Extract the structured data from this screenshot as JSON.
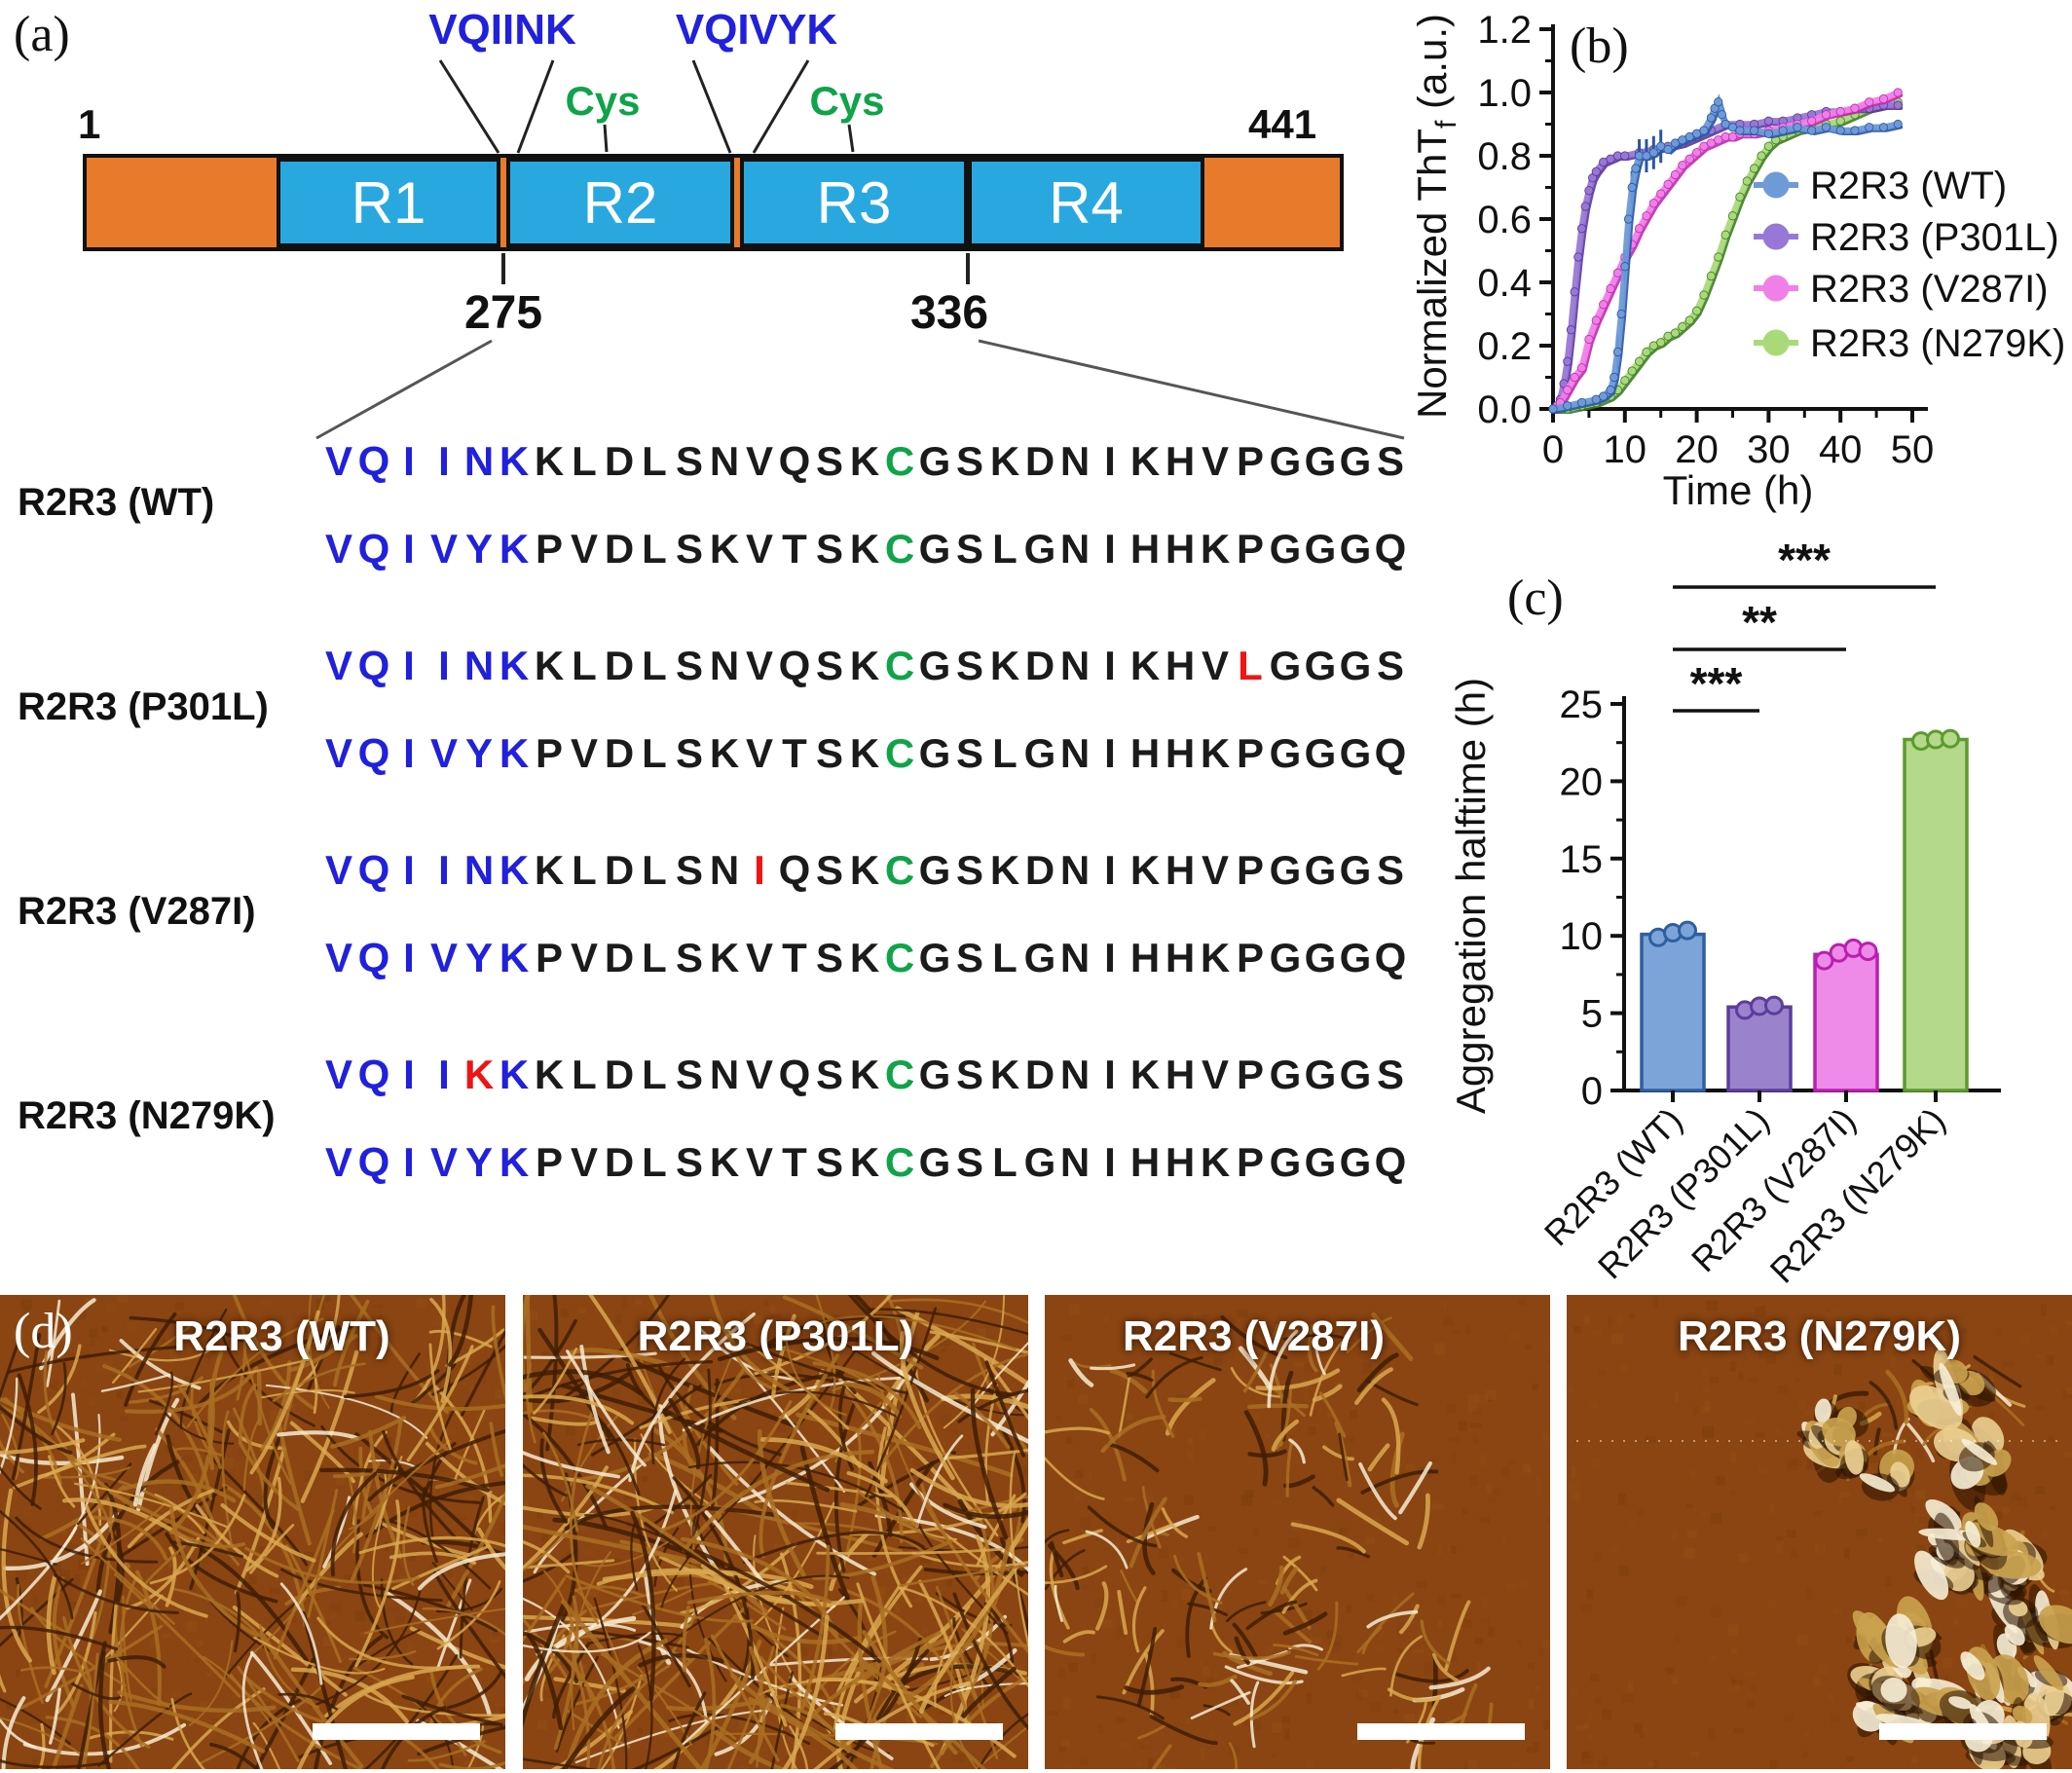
{
  "figure": {
    "panel_labels": {
      "a": "(a)",
      "b": "(b)",
      "c": "(c)",
      "d": "(d)"
    }
  },
  "domain_diagram": {
    "start_residue": "1",
    "end_residue": "441",
    "segments": [
      "",
      "R1",
      "R2",
      "R3",
      "R4",
      ""
    ],
    "motifs": {
      "vqiink": "VQIINK",
      "vqivyk": "VQIVYK"
    },
    "cys": [
      "Cys",
      "Cys"
    ],
    "boundaries": {
      "r1_r2": "275",
      "r3_r4": "336"
    },
    "colors": {
      "flank": "#e87a2c",
      "repeat": "#29a8e0",
      "motif_text": "#2020dd",
      "cys_text": "#10a34a",
      "mutation_text": "#ee1414"
    }
  },
  "sequences": {
    "rows": [
      {
        "name": "R2R3 (WT)",
        "line1": [
          {
            "t": "VQIINK",
            "c": "motif"
          },
          {
            "t": "KLDLSNVQSK",
            "c": "plain"
          },
          {
            "t": "C",
            "c": "cys"
          },
          {
            "t": "GSKDNIKHVPGGGS",
            "c": "plain"
          }
        ],
        "line2": [
          {
            "t": "VQIVYK",
            "c": "motif"
          },
          {
            "t": "PVDLSKVTSK",
            "c": "plain"
          },
          {
            "t": "C",
            "c": "cys"
          },
          {
            "t": "GSLGNIHHKPGGGQ",
            "c": "plain"
          }
        ]
      },
      {
        "name": "R2R3 (P301L)",
        "line1": [
          {
            "t": "VQIINK",
            "c": "motif"
          },
          {
            "t": "KLDLSNVQSK",
            "c": "plain"
          },
          {
            "t": "C",
            "c": "cys"
          },
          {
            "t": "GSKDNIKHV",
            "c": "plain"
          },
          {
            "t": "L",
            "c": "mut"
          },
          {
            "t": "GGGS",
            "c": "plain"
          }
        ],
        "line2": [
          {
            "t": "VQIVYK",
            "c": "motif"
          },
          {
            "t": "PVDLSKVTSK",
            "c": "plain"
          },
          {
            "t": "C",
            "c": "cys"
          },
          {
            "t": "GSLGNIHHKPGGGQ",
            "c": "plain"
          }
        ]
      },
      {
        "name": "R2R3 (V287I)",
        "line1": [
          {
            "t": "VQIINK",
            "c": "motif"
          },
          {
            "t": "KLDLSN",
            "c": "plain"
          },
          {
            "t": "I",
            "c": "mut"
          },
          {
            "t": "QSK",
            "c": "plain"
          },
          {
            "t": "C",
            "c": "cys"
          },
          {
            "t": "GSKDNIKHVPGGGS",
            "c": "plain"
          }
        ],
        "line2": [
          {
            "t": "VQIVYK",
            "c": "motif"
          },
          {
            "t": "PVDLSKVTSK",
            "c": "plain"
          },
          {
            "t": "C",
            "c": "cys"
          },
          {
            "t": "GSLGNIHHKPGGGQ",
            "c": "plain"
          }
        ]
      },
      {
        "name": "R2R3 (N279K)",
        "line1": [
          {
            "t": "VQII",
            "c": "motif"
          },
          {
            "t": "K",
            "c": "mut"
          },
          {
            "t": "K",
            "c": "motif"
          },
          {
            "t": "KLDLSNVQSK",
            "c": "plain"
          },
          {
            "t": "C",
            "c": "cys"
          },
          {
            "t": "GSKDNIKHVPGGGS",
            "c": "plain"
          }
        ],
        "line2": [
          {
            "t": "VQIVYK",
            "c": "motif"
          },
          {
            "t": "PVDLSKVTSK",
            "c": "plain"
          },
          {
            "t": "C",
            "c": "cys"
          },
          {
            "t": "GSLGNIHHKPGGGQ",
            "c": "plain"
          }
        ]
      }
    ]
  },
  "chart_data": [
    {
      "panel": "b",
      "type": "line",
      "title": "",
      "xlabel": "Time (h)",
      "ylabel_main": "Normalized ThT",
      "ylabel_sub": "f",
      "ylabel_unit": " (a.u.)",
      "xlim": [
        0,
        52
      ],
      "ylim": [
        0,
        1.2
      ],
      "xticks": [
        0,
        10,
        20,
        30,
        40,
        50
      ],
      "yticks": [
        0.0,
        0.2,
        0.4,
        0.6,
        0.8,
        1.0,
        1.2
      ],
      "legend_position": "inside-right",
      "series": [
        {
          "name": "R2R3 (WT)",
          "color": "#6e9ad8",
          "dark": "#2a55a0",
          "error_bars_x": [
            9,
            10,
            11,
            12,
            13,
            14,
            15
          ],
          "x": [
            0,
            2,
            4,
            6,
            7,
            8,
            8.5,
            9,
            9.5,
            10,
            10.5,
            11,
            11.5,
            12,
            13,
            14,
            15,
            16,
            17,
            18,
            19,
            20,
            21,
            22,
            22.5,
            23,
            23.5,
            24,
            25,
            26,
            28,
            30,
            32,
            34,
            36,
            38,
            40,
            42,
            44,
            46,
            48
          ],
          "y": [
            0,
            0.01,
            0.02,
            0.03,
            0.04,
            0.06,
            0.1,
            0.18,
            0.3,
            0.45,
            0.6,
            0.7,
            0.76,
            0.8,
            0.8,
            0.81,
            0.83,
            0.82,
            0.84,
            0.85,
            0.86,
            0.87,
            0.88,
            0.92,
            0.95,
            0.97,
            0.93,
            0.9,
            0.89,
            0.88,
            0.88,
            0.87,
            0.88,
            0.89,
            0.88,
            0.89,
            0.88,
            0.88,
            0.89,
            0.89,
            0.9
          ]
        },
        {
          "name": "R2R3 (P301L)",
          "color": "#9878d6",
          "dark": "#5a3898",
          "x": [
            0,
            0.5,
            1,
            1.5,
            2,
            2.5,
            3,
            3.5,
            4,
            4.5,
            5,
            5.5,
            6,
            7,
            8,
            9,
            10,
            12,
            14,
            16,
            18,
            20,
            22,
            24,
            26,
            28,
            30,
            32,
            34,
            36,
            38,
            40,
            42,
            44,
            46,
            48
          ],
          "y": [
            0,
            0.01,
            0.03,
            0.08,
            0.15,
            0.25,
            0.37,
            0.48,
            0.57,
            0.64,
            0.69,
            0.73,
            0.75,
            0.78,
            0.79,
            0.8,
            0.8,
            0.81,
            0.82,
            0.83,
            0.84,
            0.86,
            0.88,
            0.9,
            0.9,
            0.9,
            0.91,
            0.91,
            0.92,
            0.93,
            0.94,
            0.94,
            0.95,
            0.95,
            0.96,
            0.96
          ]
        },
        {
          "name": "R2R3 (V287I)",
          "color": "#f080e8",
          "dark": "#c02cb0",
          "x": [
            0,
            1,
            2,
            3,
            4,
            5,
            6,
            7,
            8,
            9,
            10,
            11,
            12,
            13,
            14,
            15,
            16,
            17,
            18,
            19,
            20,
            21,
            22,
            23,
            24,
            25,
            26,
            28,
            30,
            32,
            34,
            36,
            38,
            40,
            42,
            44,
            46,
            48
          ],
          "y": [
            0,
            0.02,
            0.06,
            0.1,
            0.13,
            0.22,
            0.28,
            0.33,
            0.38,
            0.43,
            0.48,
            0.52,
            0.57,
            0.61,
            0.65,
            0.68,
            0.71,
            0.74,
            0.77,
            0.79,
            0.81,
            0.83,
            0.84,
            0.85,
            0.86,
            0.86,
            0.87,
            0.87,
            0.88,
            0.89,
            0.9,
            0.91,
            0.93,
            0.94,
            0.95,
            0.97,
            0.98,
            1.0
          ]
        },
        {
          "name": "R2R3 (N279K)",
          "color": "#aada78",
          "dark": "#3f7d28",
          "x": [
            0,
            2,
            4,
            6,
            8,
            9,
            10,
            11,
            12,
            13,
            14,
            15,
            16,
            17,
            18,
            19,
            20,
            21,
            22,
            23,
            24,
            25,
            26,
            27,
            28,
            29,
            30,
            31,
            32,
            34,
            36,
            38,
            40,
            42,
            44,
            46,
            48
          ],
          "y": [
            0,
            0,
            0.01,
            0.02,
            0.04,
            0.06,
            0.09,
            0.12,
            0.15,
            0.18,
            0.2,
            0.21,
            0.23,
            0.24,
            0.26,
            0.28,
            0.31,
            0.36,
            0.42,
            0.48,
            0.55,
            0.61,
            0.67,
            0.72,
            0.76,
            0.8,
            0.83,
            0.85,
            0.86,
            0.88,
            0.89,
            0.9,
            0.91,
            0.93,
            0.95,
            0.96,
            0.97
          ]
        }
      ]
    },
    {
      "panel": "c",
      "type": "bar",
      "ylabel": "Aggregation halftime (h)",
      "ylim": [
        0,
        25
      ],
      "yticks": [
        0,
        5,
        10,
        15,
        20,
        25
      ],
      "categories": [
        "R2R3 (WT)",
        "R2R3 (P301L)",
        "R2R3 (V287I)",
        "R2R3 (N279K)"
      ],
      "values": [
        10.1,
        5.4,
        8.8,
        22.7
      ],
      "points": [
        [
          9.9,
          10.2,
          10.35
        ],
        [
          5.2,
          5.45,
          5.5
        ],
        [
          8.4,
          8.9,
          9.2,
          9.0
        ],
        [
          22.6,
          22.7,
          22.75
        ]
      ],
      "fills": [
        "#7da4d9",
        "#9b82cc",
        "#ee8ae8",
        "#b4d98a"
      ],
      "borders": [
        "#2e5f9e",
        "#5c3d9c",
        "#bb1fb0",
        "#5d9a2f"
      ],
      "significance": [
        {
          "from": 0,
          "to": 1,
          "label": "***"
        },
        {
          "from": 0,
          "to": 2,
          "label": "**"
        },
        {
          "from": 0,
          "to": 3,
          "label": "***"
        }
      ]
    }
  ],
  "afm_panel": {
    "images": [
      {
        "label": "R2R3 (WT)"
      },
      {
        "label": "R2R3 (P301L)"
      },
      {
        "label": "R2R3 (V287I)"
      },
      {
        "label": "R2R3 (N279K)"
      }
    ],
    "scale_bar": true
  }
}
